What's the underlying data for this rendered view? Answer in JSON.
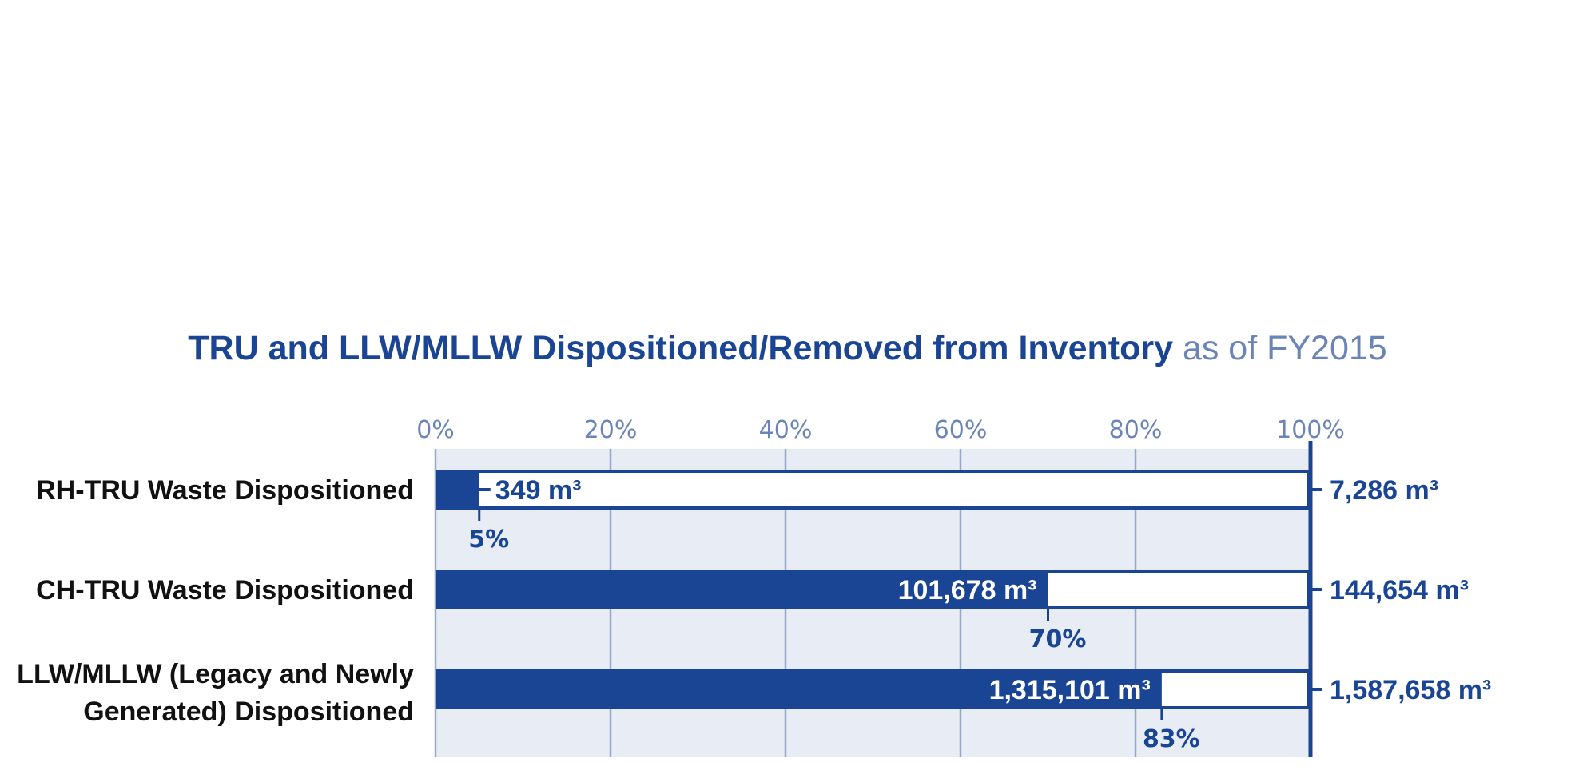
{
  "title": {
    "bold": "TRU and LLW/MLLW Dispositioned/Removed from Inventory",
    "light": "as of FY2015"
  },
  "colors": {
    "bar": "#1a4595",
    "background": "#e8ecf4",
    "gridline": "#95a9cc",
    "tick_text": "#6b84b8"
  },
  "chart_data": {
    "type": "bar",
    "orientation": "horizontal",
    "xlim": [
      0,
      100
    ],
    "x_ticks": [
      "0%",
      "20%",
      "40%",
      "60%",
      "80%",
      "100%"
    ],
    "grid": true,
    "categories": [
      [
        "RH-TRU Waste Dispositioned"
      ],
      [
        "CH-TRU Waste Dispositioned"
      ],
      [
        "LLW/MLLW (Legacy and Newly",
        "Generated) Dispositioned"
      ]
    ],
    "values": [
      5,
      70,
      83
    ],
    "percent_labels": [
      "5%",
      "70%",
      "83%"
    ],
    "dispositioned_labels": [
      "349 m³",
      "101,678 m³",
      "1,315,101 m³"
    ],
    "total_labels": [
      "7,286 m³",
      "144,654 m³",
      "1,587,658 m³"
    ]
  }
}
